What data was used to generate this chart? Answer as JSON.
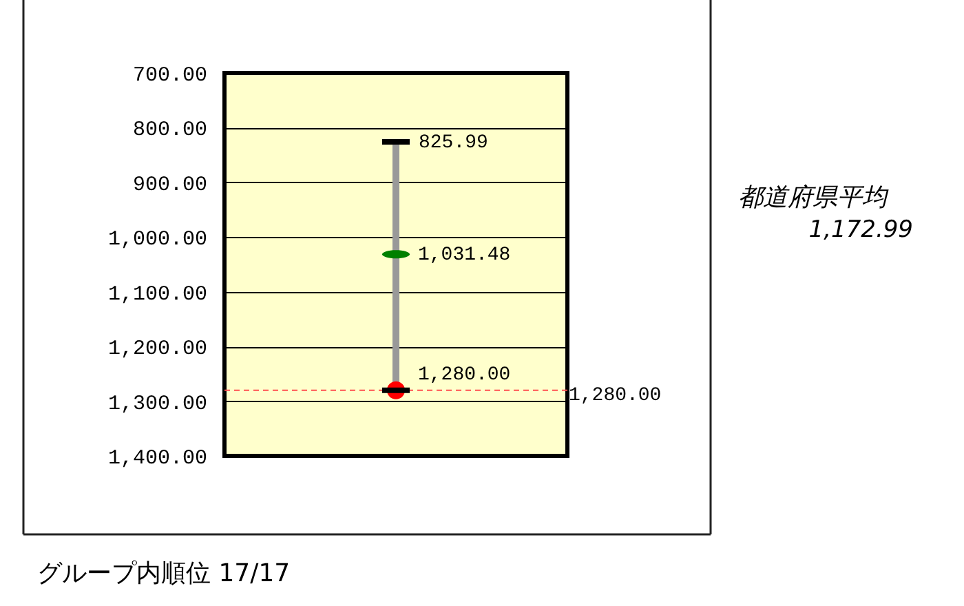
{
  "chart_data": {
    "type": "scatter",
    "categories": [
      null
    ],
    "ylim": [
      1400,
      700
    ],
    "yticks": [
      {
        "value": 700,
        "label": "700.00"
      },
      {
        "value": 800,
        "label": "800.00"
      },
      {
        "value": 900,
        "label": "900.00"
      },
      {
        "value": 1000,
        "label": "1,000.00"
      },
      {
        "value": 1100,
        "label": "1,100.00"
      },
      {
        "value": 1200,
        "label": "1,200.00"
      },
      {
        "value": 1300,
        "label": "1,300.00"
      },
      {
        "value": 1400,
        "label": "1,400.00"
      }
    ],
    "grid": "y",
    "tick_labels": "y",
    "series": [
      {
        "color": "#008000",
        "values": [
          1031.48
        ],
        "errors": [
          [
            825.99,
            1280
          ]
        ],
        "value_labels": [
          "1,031.48"
        ]
      },
      {
        "color": "#ff0000",
        "marker": "circle",
        "values": [
          1280
        ],
        "value_labels": [
          "1,280.00"
        ]
      }
    ],
    "ref_lines": [
      {
        "axis": "y",
        "value": 1280,
        "label": "1,280.00",
        "color": "#ff5050",
        "line_style": "dashed"
      }
    ],
    "annotations": [
      "825.99",
      "都道府県平均",
      "1,172.99",
      "グループ内順位 17/17"
    ]
  }
}
